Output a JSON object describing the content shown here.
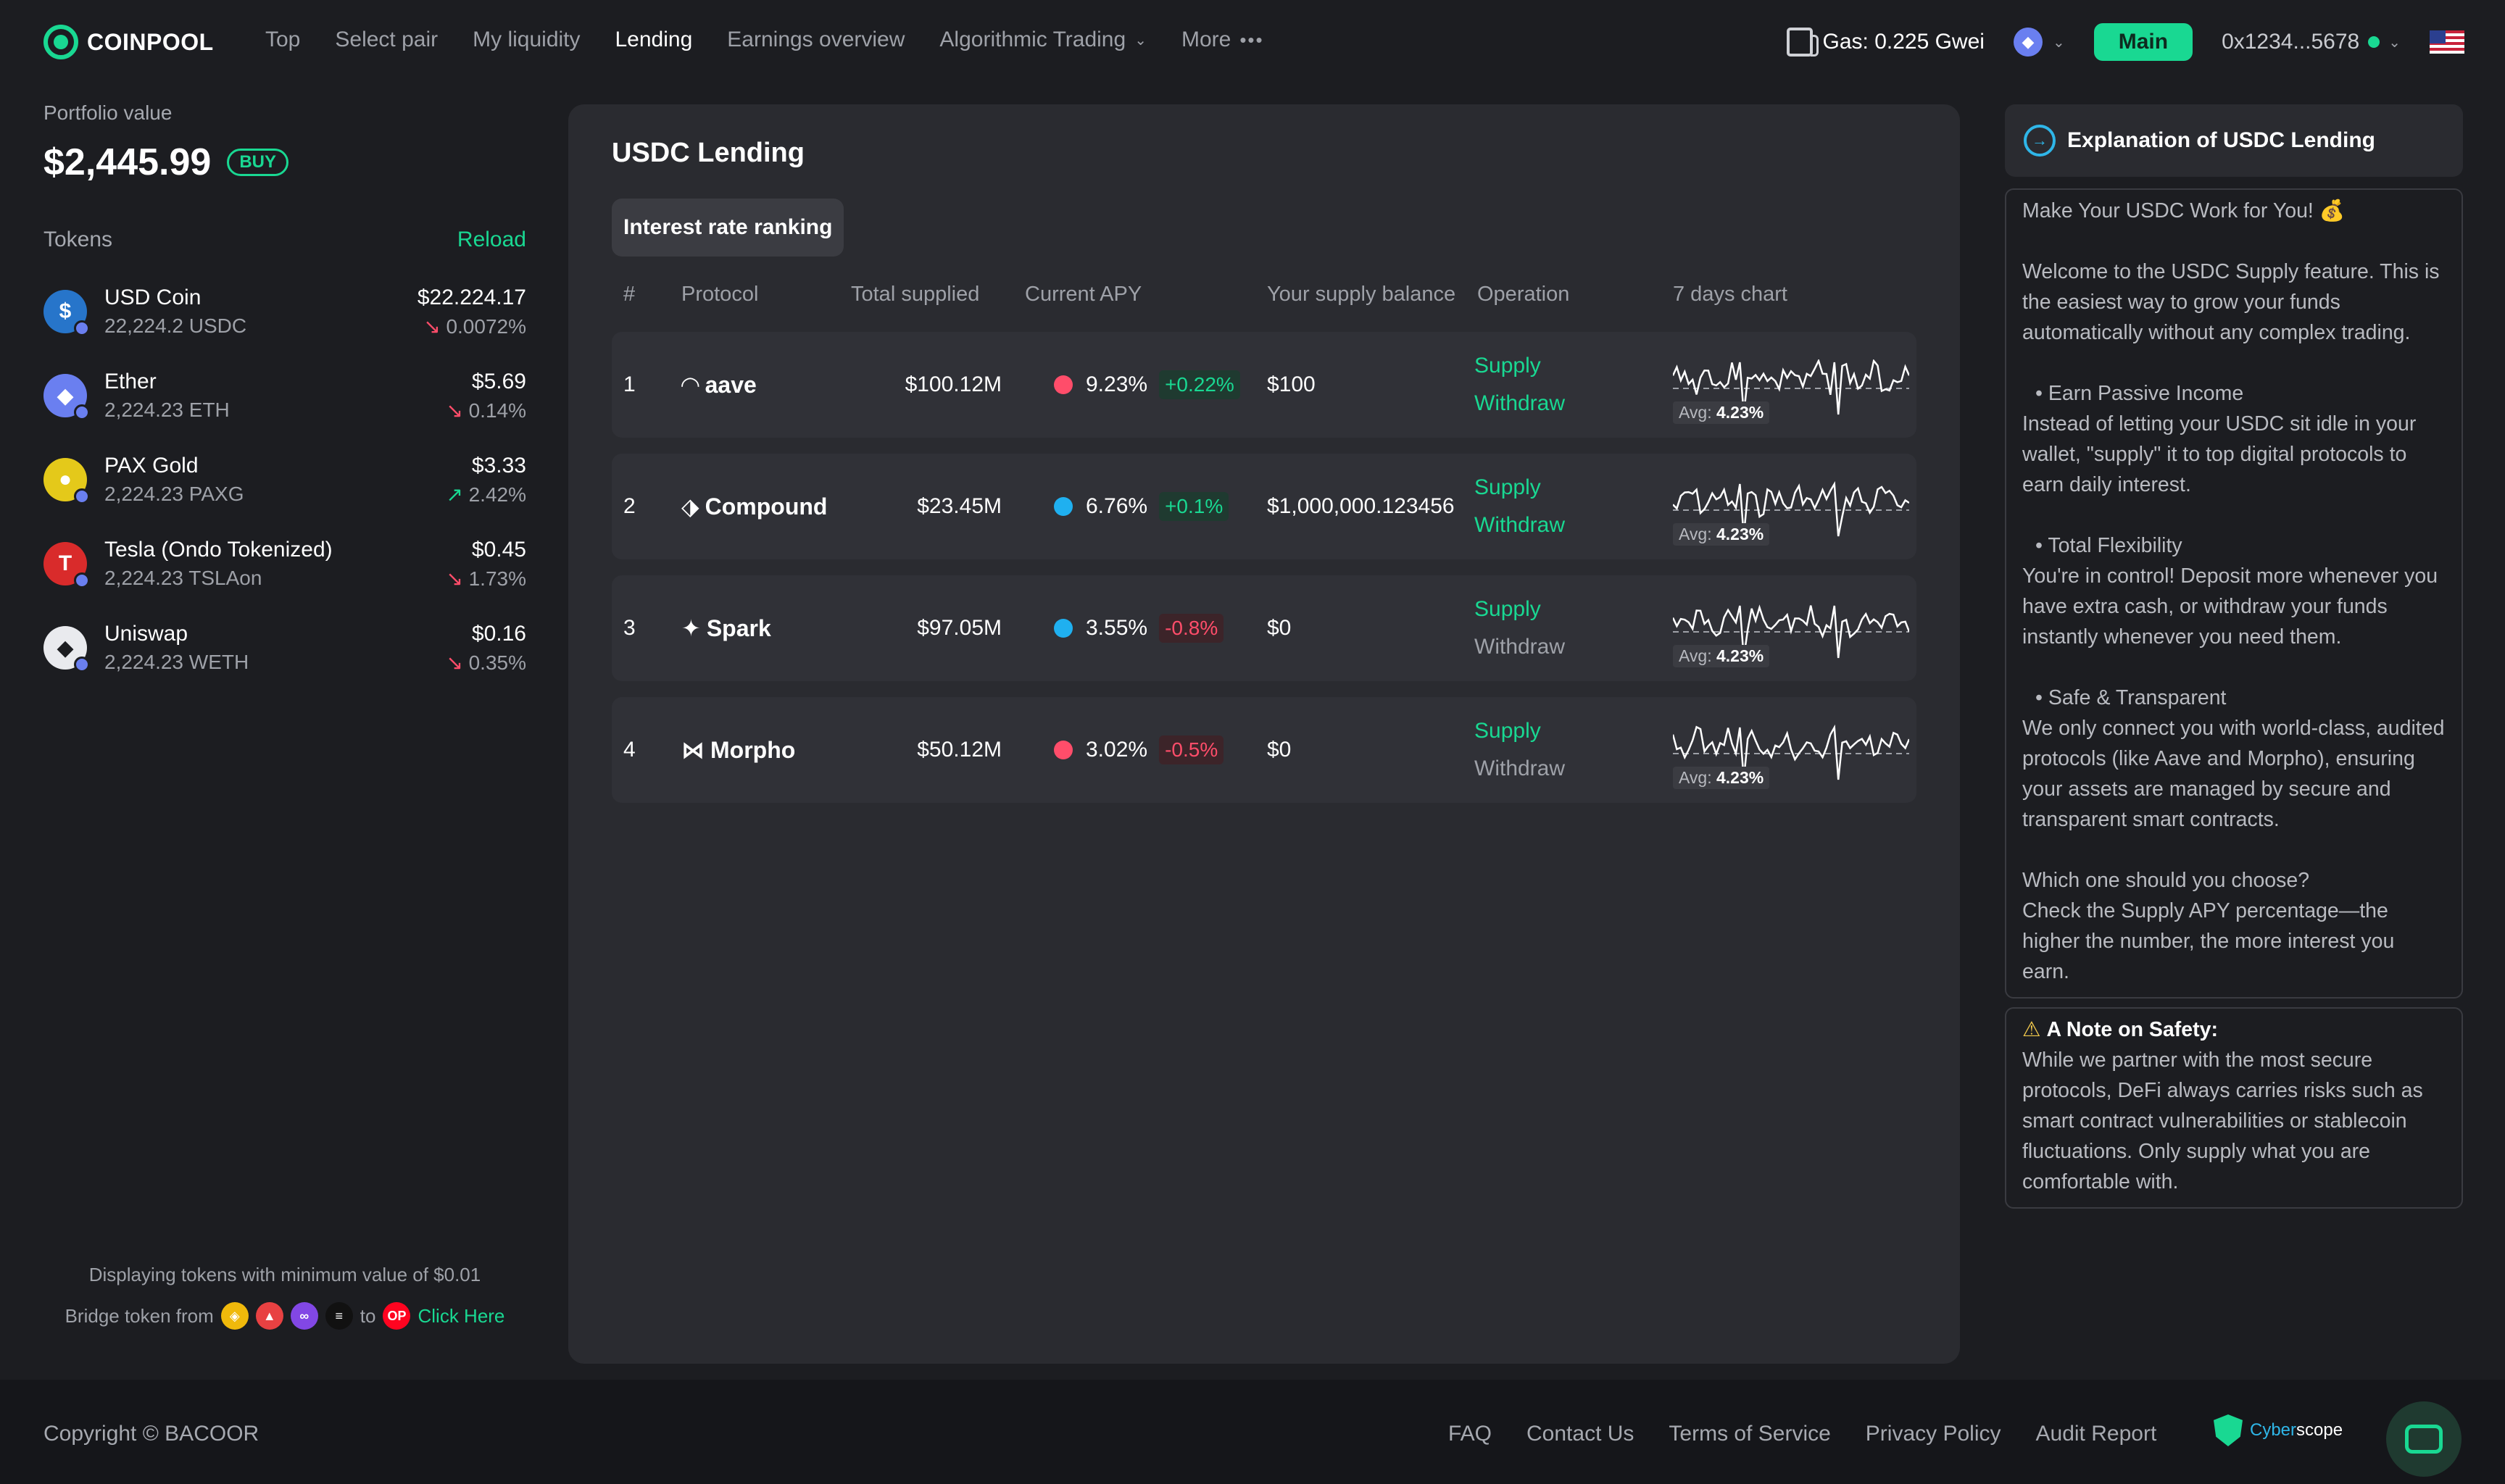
{
  "brand": {
    "name": "COINPOOL"
  },
  "nav": {
    "links": [
      {
        "label": "Top",
        "active": false
      },
      {
        "label": "Select pair",
        "active": false
      },
      {
        "label": "My liquidity",
        "active": false
      },
      {
        "label": "Lending",
        "active": true
      },
      {
        "label": "Earnings overview",
        "active": false
      },
      {
        "label": "Algorithmic Trading",
        "active": false
      },
      {
        "label": "More",
        "active": false
      }
    ],
    "gas": "Gas: 0.225 Gwei",
    "network_icon": "ethereum-icon",
    "main_label": "Main",
    "wallet": "0x1234...5678",
    "flag_icon": "us-flag-icon"
  },
  "portfolio": {
    "label": "Portfolio value",
    "value": "$2,445.99",
    "buy_label": "BUY",
    "tokens_label": "Tokens",
    "reload_label": "Reload",
    "tokens": [
      {
        "name": "USD Coin",
        "amount": "22,224.2 USDC",
        "value": "$22.224.17",
        "change": "0.0072%",
        "direction": "down",
        "color": "#2775ca",
        "glyph": "$"
      },
      {
        "name": "Ether",
        "amount": "2,224.23 ETH",
        "value": "$5.69",
        "change": "0.14%",
        "direction": "down",
        "color": "#6a7ff0",
        "glyph": "◆"
      },
      {
        "name": "PAX Gold",
        "amount": "2,224.23 PAXG",
        "value": "$3.33",
        "change": "2.42%",
        "direction": "up",
        "color": "#e4c91a",
        "glyph": "●"
      },
      {
        "name": "Tesla (Ondo Tokenized)",
        "amount": "2,224.23 TSLAon",
        "value": "$0.45",
        "change": "1.73%",
        "direction": "down",
        "color": "#d92b2b",
        "glyph": "T"
      },
      {
        "name": "Uniswap",
        "amount": "2,224.23 WETH",
        "value": "$0.16",
        "change": "0.35%",
        "direction": "down",
        "color": "#e9eaee",
        "glyph": "◆"
      }
    ],
    "min_note": "Displaying tokens with minimum value of $0.01",
    "bridge_from": "Bridge token from",
    "bridge_to": "to",
    "click_here": "Click Here",
    "bridge_target": "OP"
  },
  "lending": {
    "title": "USDC Lending",
    "tab": "Interest rate ranking",
    "columns": [
      "#",
      "Protocol",
      "Total supplied",
      "Current APY",
      "Your supply balance",
      "Operation",
      "7 days chart"
    ],
    "supply_label": "Supply",
    "withdraw_label": "Withdraw",
    "avg_label": "Avg:",
    "rows": [
      {
        "rank": "1",
        "protocol": "aave",
        "glyph": "◠",
        "total": "$100.12M",
        "apy": "9.23%",
        "apy_change": "+0.22%",
        "change_dir": "pos",
        "dot_color": "#ff4d6a",
        "balance": "$100",
        "withdraw_active": true,
        "avg": "4.23%"
      },
      {
        "rank": "2",
        "protocol": "Compound",
        "glyph": "⬗",
        "total": "$23.45M",
        "apy": "6.76%",
        "apy_change": "+0.1%",
        "change_dir": "pos",
        "dot_color": "#1fb0f0",
        "balance": "$1,000,000.123456",
        "withdraw_active": true,
        "avg": "4.23%"
      },
      {
        "rank": "3",
        "protocol": "Spark",
        "glyph": "✦",
        "total": "$97.05M",
        "apy": "3.55%",
        "apy_change": "-0.8%",
        "change_dir": "neg",
        "dot_color": "#1fb0f0",
        "balance": "$0",
        "withdraw_active": false,
        "avg": "4.23%"
      },
      {
        "rank": "4",
        "protocol": "Morpho",
        "glyph": "⋈",
        "total": "$50.12M",
        "apy": "3.02%",
        "apy_change": "-0.5%",
        "change_dir": "neg",
        "dot_color": "#ff4d6a",
        "balance": "$0",
        "withdraw_active": false,
        "avg": "4.23%"
      }
    ]
  },
  "explain": {
    "title": "Explanation of USDC Lending",
    "intro": "Make Your USDC Work for You! 💰",
    "welcome": "Welcome to the USDC Supply feature. This is the easiest way to grow your funds automatically without any complex trading.",
    "b1_title": "•  Earn Passive Income",
    "b1_text": "Instead of letting your USDC sit idle in your wallet, \"supply\" it to top digital protocols to earn daily interest.",
    "b2_title": "•  Total Flexibility",
    "b2_text": "You're in control! Deposit more whenever you have extra cash, or withdraw your funds instantly whenever you need them.",
    "b3_title": "•  Safe & Transparent",
    "b3_text": "We only connect you with world-class, audited protocols (like Aave and Morpho), ensuring your assets are managed by secure and transparent smart contracts.",
    "choose_q": "Which one should you choose?",
    "choose_a": "Check the Supply APY percentage—the higher the number, the more interest you earn.",
    "note_title": "A Note on Safety:",
    "note_text": "While we partner with the most secure protocols, DeFi always carries risks such as smart contract vulnerabilities or stablecoin fluctuations. Only supply what you are comfortable with."
  },
  "footer": {
    "copyright": "Copyright © BACOOR",
    "links": [
      "FAQ",
      "Contact Us",
      "Terms of Service",
      "Privacy Policy",
      "Audit Report"
    ],
    "cyber_a": "Cyber",
    "cyber_b": "scope"
  },
  "colors": {
    "accent": "#19d892",
    "negative": "#ff4d6a",
    "panel": "#2a2b30",
    "background": "#1c1d21"
  }
}
